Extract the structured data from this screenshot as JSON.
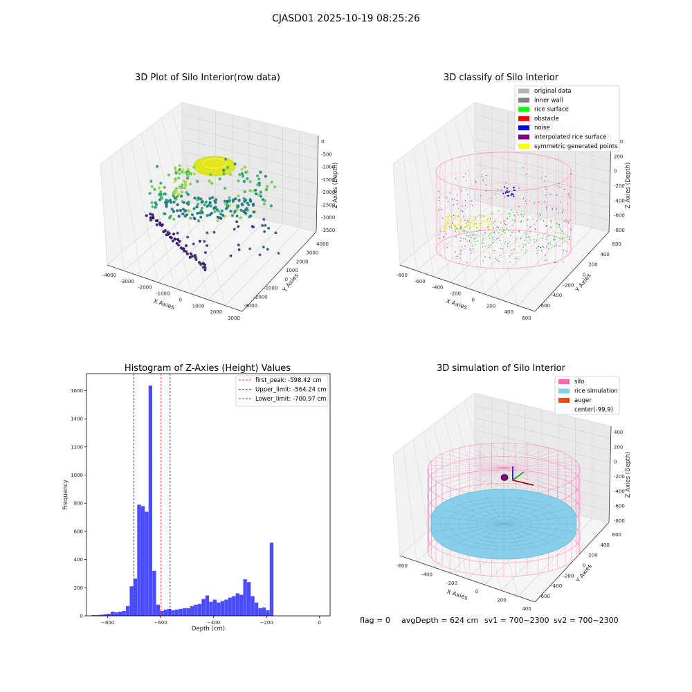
{
  "figure_title": "CJASD01 2025-10-19 08:25:26",
  "footer": {
    "flag": "flag = 0",
    "avg_depth": "avgDepth = 624 cm",
    "sv1": "sv1 = 700~2300",
    "sv2": "sv2 = 700~2300"
  },
  "panels": {
    "raw": {
      "title": "3D Plot of Silo Interior(row data)",
      "xlabel": "X Axies",
      "ylabel": "Y Axies",
      "zlabel": "Z Axies (Depth)",
      "xticks": [
        "-4000",
        "-3000",
        "-2000",
        "-1000",
        "0",
        "1000",
        "2000",
        "3000"
      ],
      "yticks": [
        "-3000",
        "-2000",
        "-1000",
        "0",
        "1000",
        "2000",
        "3000",
        "4000"
      ],
      "zticks": [
        "0",
        "-500",
        "-1000",
        "-1500",
        "-2000",
        "-2500",
        "-3000",
        "-3500"
      ]
    },
    "classify": {
      "title": "3D classify of Silo Interior",
      "xlabel": "X Axies",
      "ylabel": "Y Axies",
      "zlabel": "Z Axies (Depth)",
      "xticks": [
        "-800",
        "-600",
        "-400",
        "-200",
        "0",
        "200",
        "400",
        "600"
      ],
      "yticks": [
        "-600",
        "-400",
        "-200",
        "0",
        "200",
        "400",
        "600"
      ],
      "zticks": [
        "400",
        "200",
        "0",
        "-200",
        "-400",
        "-600",
        "-800"
      ],
      "legend": [
        {
          "label": "original data",
          "color": "#b3b3b3"
        },
        {
          "label": "inner wall",
          "color": "#808080"
        },
        {
          "label": "rice surface",
          "color": "#00ff00"
        },
        {
          "label": "obstacle",
          "color": "#ff0000"
        },
        {
          "label": "noise",
          "color": "#0000ff"
        },
        {
          "label": "interpolated rice surface",
          "color": "#800080"
        },
        {
          "label": "symmetric generated points",
          "color": "#ffff00"
        }
      ]
    },
    "simulation": {
      "title": "3D simulation of Silo Interior",
      "xlabel": "X Axies",
      "ylabel": "Y Axies",
      "zlabel": "Z Axies (Depth)",
      "xticks": [
        "-600",
        "-400",
        "-200",
        "0",
        "200",
        "400"
      ],
      "yticks": [
        "-600",
        "-400",
        "-200",
        "0",
        "200",
        "400",
        "600"
      ],
      "zticks": [
        "400",
        "200",
        "0",
        "-200",
        "-400",
        "-600",
        "-800"
      ],
      "legend": [
        {
          "label": "silo",
          "color": "#ff69b4"
        },
        {
          "label": "rice simulation",
          "color": "#87ceeb"
        },
        {
          "label": "auger",
          "color": "#ff4500"
        },
        {
          "label": "center(-99,9)",
          "color": ""
        }
      ]
    }
  },
  "chart_data": [
    {
      "type": "bar",
      "title": "Histogram of Z-Axies (Height) Values",
      "xlabel": "Depth (cm)",
      "ylabel": "Frequency",
      "color": "#0000ff",
      "xlim": [
        -880,
        40
      ],
      "ylim": [
        0,
        1720
      ],
      "xticks": [
        -800,
        -600,
        -400,
        -200,
        0
      ],
      "yticks": [
        0,
        200,
        400,
        600,
        800,
        1000,
        1200,
        1400,
        1600
      ],
      "bin_start": -860,
      "bin_width": 14.3,
      "counts": [
        5,
        5,
        8,
        12,
        15,
        30,
        25,
        30,
        35,
        70,
        210,
        265,
        790,
        780,
        740,
        1635,
        320,
        80,
        35,
        45,
        50,
        40,
        45,
        50,
        55,
        55,
        70,
        80,
        85,
        120,
        145,
        100,
        115,
        95,
        105,
        115,
        130,
        140,
        160,
        150,
        260,
        240,
        140,
        95,
        55,
        60,
        40,
        520
      ],
      "vlines": [
        {
          "x": -598.42,
          "label": "first_peak: -598.42 cm",
          "color": "#ff0000"
        },
        {
          "x": -564.24,
          "label": "Upper_limit: -564.24 cm",
          "color": "#0000cc"
        },
        {
          "x": -700.97,
          "label": "Lower_limit: -700.97 cm",
          "color": "#0000cc"
        }
      ],
      "legend_position": "top-right"
    }
  ]
}
